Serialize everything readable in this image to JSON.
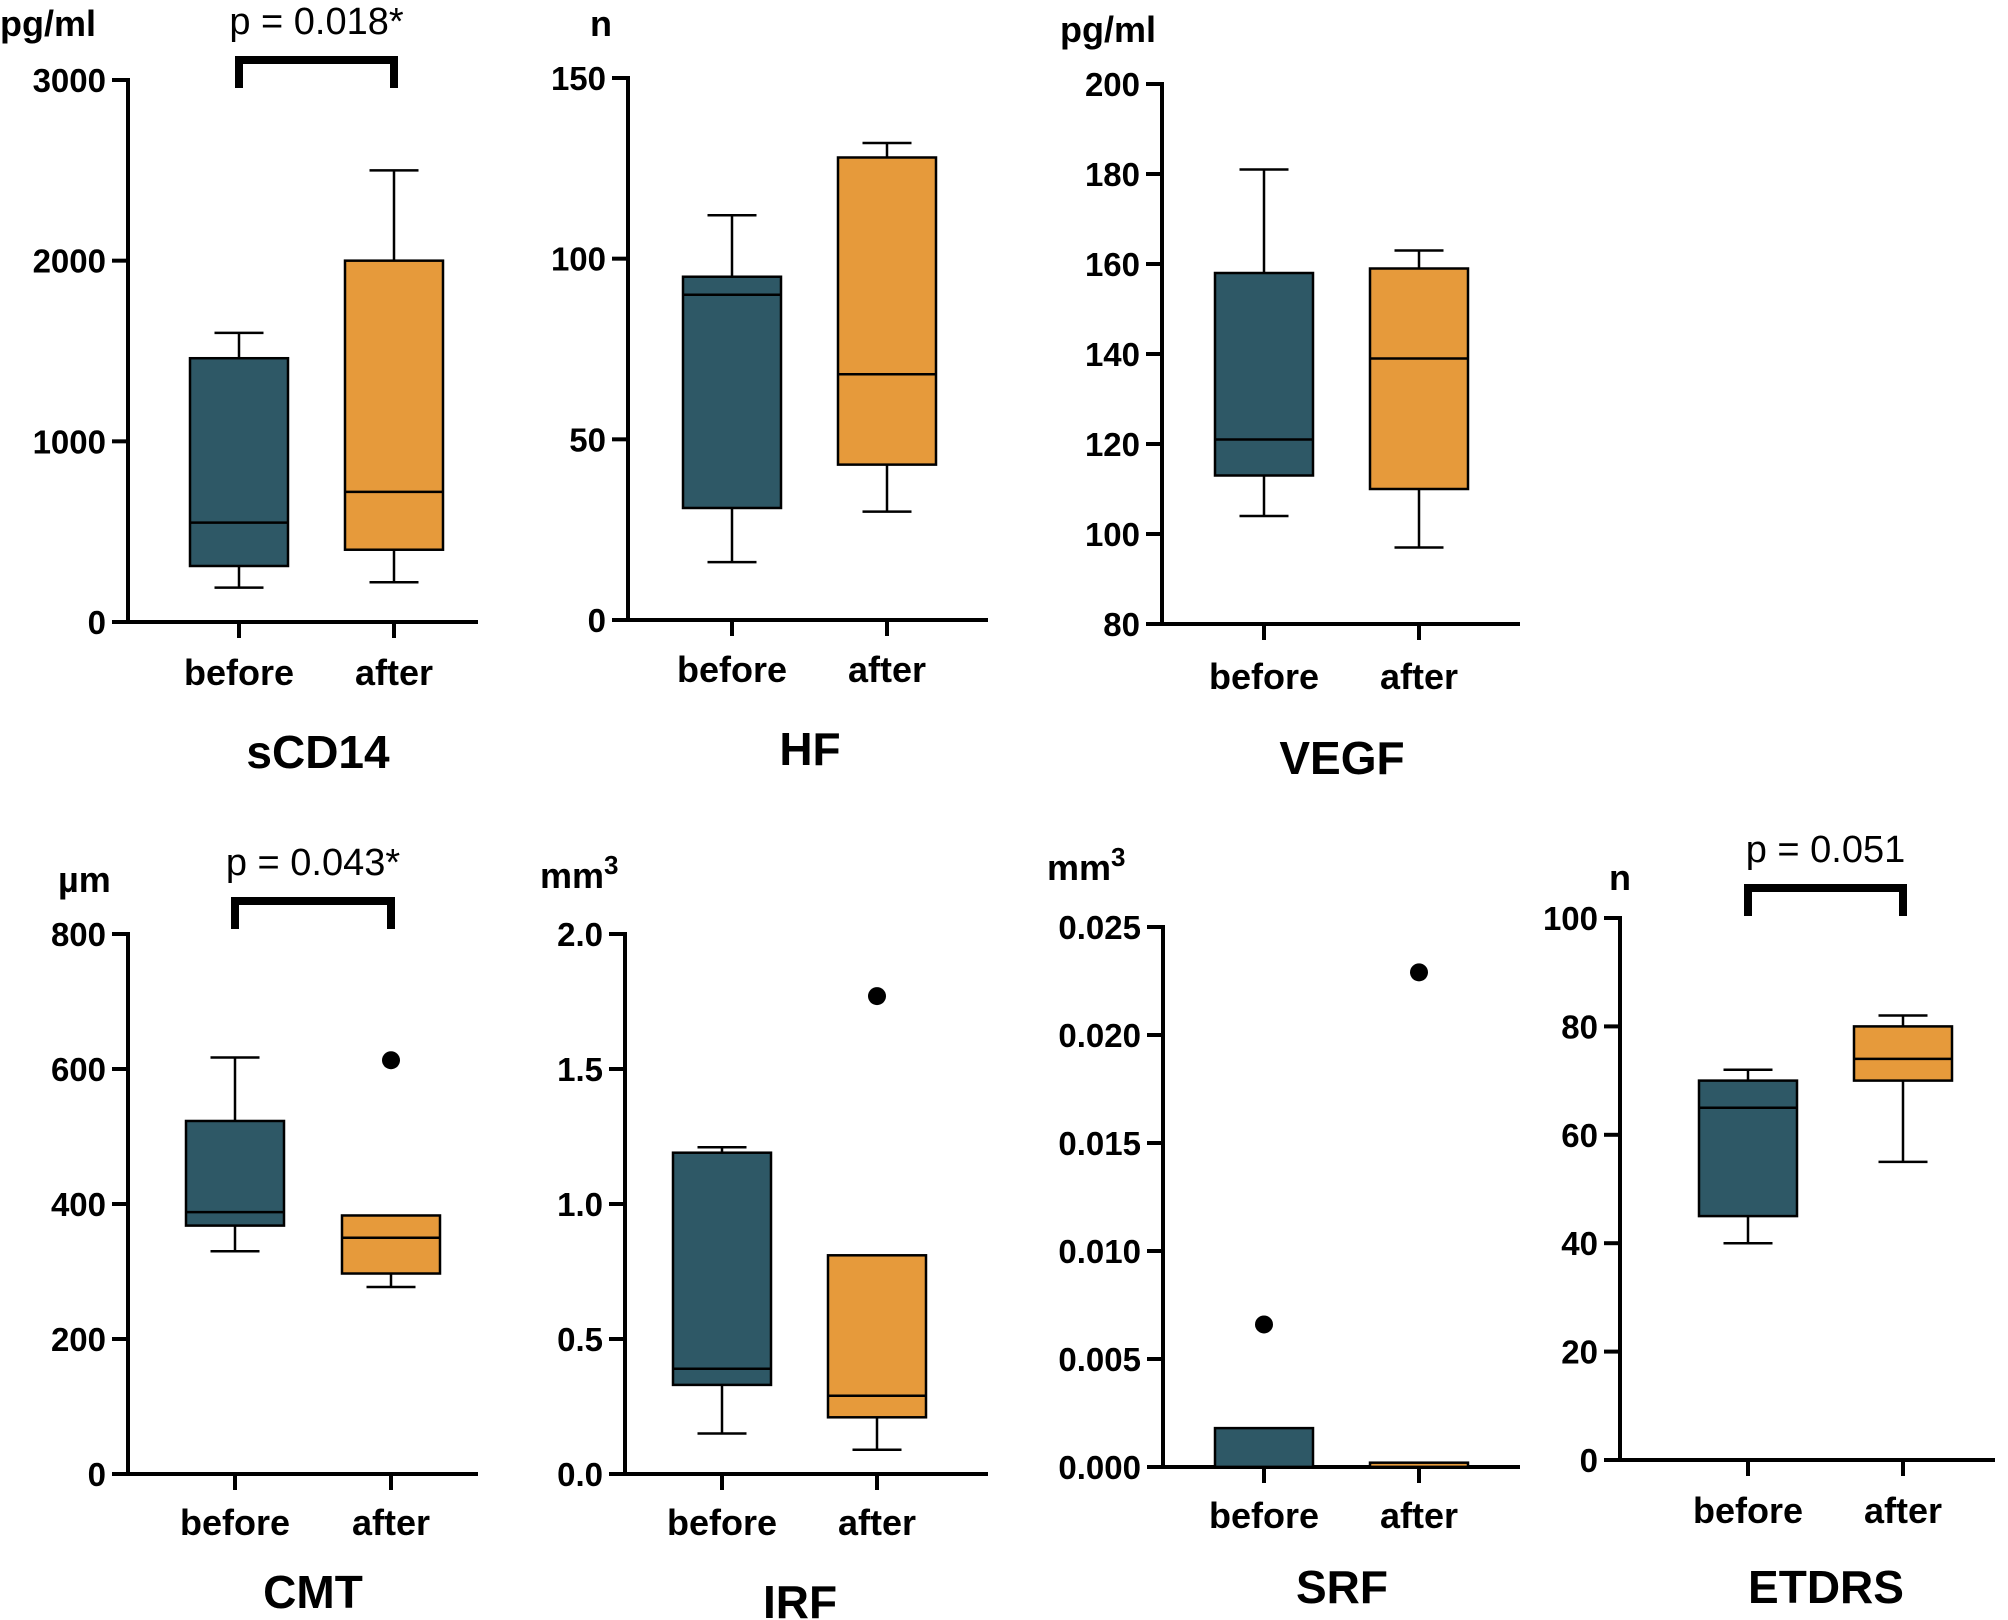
{
  "figure": {
    "caption": ""
  },
  "colors": {
    "before": "#2e5866",
    "after": "#e69a3b",
    "axis": "#000000",
    "outlier": "#000000"
  },
  "chart_data": [
    {
      "type": "box",
      "title": "sCD14",
      "ylabel": "pg/ml",
      "ylim": [
        0,
        3000
      ],
      "yticks": [
        0,
        1000,
        2000,
        3000
      ],
      "tick_labels": [
        "0",
        "1000",
        "2000",
        "3000"
      ],
      "categories": [
        "before",
        "after"
      ],
      "boxes": [
        {
          "name": "before",
          "whisker_low": 190,
          "q1": 310,
          "median": 550,
          "q3": 1460,
          "whisker_high": 1600,
          "outliers": []
        },
        {
          "name": "after",
          "whisker_low": 220,
          "q1": 400,
          "median": 720,
          "q3": 2000,
          "whisker_high": 2500,
          "outliers": []
        }
      ],
      "annotation": "p = 0.018*"
    },
    {
      "type": "box",
      "title": "HF",
      "ylabel": "n",
      "ylim": [
        0,
        150
      ],
      "yticks": [
        0,
        50,
        100,
        150
      ],
      "tick_labels": [
        "0",
        "50",
        "100",
        "150"
      ],
      "categories": [
        "before",
        "after"
      ],
      "boxes": [
        {
          "name": "before",
          "whisker_low": 16,
          "q1": 31,
          "median": 90,
          "q3": 95,
          "whisker_high": 112,
          "outliers": []
        },
        {
          "name": "after",
          "whisker_low": 30,
          "q1": 43,
          "median": 68,
          "q3": 128,
          "whisker_high": 132,
          "outliers": []
        }
      ],
      "annotation": ""
    },
    {
      "type": "box",
      "title": "VEGF",
      "ylabel": "pg/ml",
      "ylim": [
        80,
        200
      ],
      "yticks": [
        80,
        100,
        120,
        140,
        160,
        180,
        200
      ],
      "tick_labels": [
        "80",
        "100",
        "120",
        "140",
        "160",
        "180",
        "200"
      ],
      "categories": [
        "before",
        "after"
      ],
      "boxes": [
        {
          "name": "before",
          "whisker_low": 104,
          "q1": 113,
          "median": 121,
          "q3": 158,
          "whisker_high": 181,
          "outliers": []
        },
        {
          "name": "after",
          "whisker_low": 97,
          "q1": 110,
          "median": 139,
          "q3": 159,
          "whisker_high": 163,
          "outliers": []
        }
      ],
      "annotation": ""
    },
    {
      "type": "box",
      "title": "CMT",
      "ylabel": "µm",
      "ylim": [
        0,
        800
      ],
      "yticks": [
        0,
        200,
        400,
        600,
        800
      ],
      "tick_labels": [
        "0",
        "200",
        "400",
        "600",
        "800"
      ],
      "categories": [
        "before",
        "after"
      ],
      "boxes": [
        {
          "name": "before",
          "whisker_low": 330,
          "q1": 368,
          "median": 388,
          "q3": 523,
          "whisker_high": 617,
          "outliers": []
        },
        {
          "name": "after",
          "whisker_low": 277,
          "q1": 297,
          "median": 350,
          "q3": 383,
          "whisker_high": 383,
          "outliers": [
            613
          ]
        }
      ],
      "annotation": "p = 0.043*"
    },
    {
      "type": "box",
      "title": "IRF",
      "ylabel": "mm",
      "ylabel_sup": "3",
      "ylim": [
        0,
        2.0
      ],
      "yticks": [
        0,
        0.5,
        1.0,
        1.5,
        2.0
      ],
      "tick_labels": [
        "0.0",
        "0.5",
        "1.0",
        "1.5",
        "2.0"
      ],
      "categories": [
        "before",
        "after"
      ],
      "boxes": [
        {
          "name": "before",
          "whisker_low": 0.15,
          "q1": 0.33,
          "median": 0.39,
          "q3": 1.19,
          "whisker_high": 1.21,
          "outliers": []
        },
        {
          "name": "after",
          "whisker_low": 0.09,
          "q1": 0.21,
          "median": 0.29,
          "q3": 0.81,
          "whisker_high": 0.81,
          "outliers": [
            1.77
          ]
        }
      ],
      "annotation": ""
    },
    {
      "type": "box",
      "title": "SRF",
      "ylabel": "mm",
      "ylabel_sup": "3",
      "ylim": [
        0,
        0.025
      ],
      "yticks": [
        0,
        0.005,
        0.01,
        0.015,
        0.02,
        0.025
      ],
      "tick_labels": [
        "0.000",
        "0.005",
        "0.010",
        "0.015",
        "0.020",
        "0.025"
      ],
      "categories": [
        "before",
        "after"
      ],
      "boxes": [
        {
          "name": "before",
          "whisker_low": 0,
          "q1": 0,
          "median": 0,
          "q3": 0.0018,
          "whisker_high": 0.0018,
          "outliers": [
            0.0066
          ]
        },
        {
          "name": "after",
          "whisker_low": 0,
          "q1": 0,
          "median": 0,
          "q3": 0.0002,
          "whisker_high": 0.0002,
          "outliers": [
            0.0229
          ]
        }
      ],
      "annotation": ""
    },
    {
      "type": "box",
      "title": "ETDRS",
      "ylabel": "n",
      "ylim": [
        0,
        100
      ],
      "yticks": [
        0,
        20,
        40,
        60,
        80,
        100
      ],
      "tick_labels": [
        "0",
        "20",
        "40",
        "60",
        "80",
        "100"
      ],
      "categories": [
        "before",
        "after"
      ],
      "boxes": [
        {
          "name": "before",
          "whisker_low": 40,
          "q1": 45,
          "median": 65,
          "q3": 70,
          "whisker_high": 72,
          "outliers": []
        },
        {
          "name": "after",
          "whisker_low": 55,
          "q1": 70,
          "median": 74,
          "q3": 80,
          "whisker_high": 82,
          "outliers": []
        }
      ],
      "annotation": "p = 0.051"
    }
  ]
}
